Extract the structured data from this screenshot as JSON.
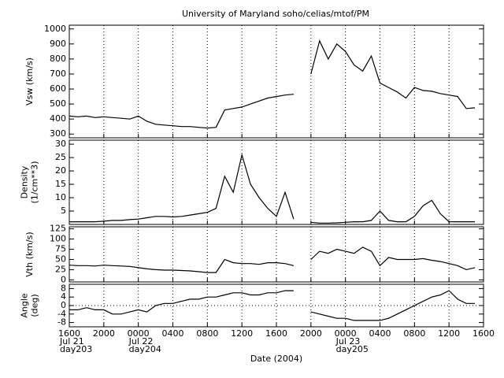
{
  "chart_data": [
    {
      "type": "line",
      "title": "University of Maryland  soho/celias/mtof/PM",
      "ylabel": [
        "Vsw (km/s)"
      ],
      "color": "#000000",
      "x": [
        "2004-07-21T16:00",
        "2004-07-21T17:00",
        "2004-07-21T18:00",
        "2004-07-21T19:00",
        "2004-07-21T20:00",
        "2004-07-21T21:00",
        "2004-07-21T22:00",
        "2004-07-21T23:00",
        "2004-07-22T00:00",
        "2004-07-22T01:00",
        "2004-07-22T02:00",
        "2004-07-22T03:00",
        "2004-07-22T04:00",
        "2004-07-22T05:00",
        "2004-07-22T06:00",
        "2004-07-22T07:00",
        "2004-07-22T08:00",
        "2004-07-22T09:00",
        "2004-07-22T10:00",
        "2004-07-22T11:00",
        "2004-07-22T12:00",
        "2004-07-22T13:00",
        "2004-07-22T14:00",
        "2004-07-22T15:00",
        "2004-07-22T16:00",
        "2004-07-22T17:00",
        "2004-07-22T18:00",
        "2004-07-22T19:00",
        "2004-07-22T20:00",
        "2004-07-22T21:00",
        "2004-07-22T22:00",
        "2004-07-22T23:00",
        "2004-07-23T00:00",
        "2004-07-23T01:00",
        "2004-07-23T02:00",
        "2004-07-23T03:00",
        "2004-07-23T04:00",
        "2004-07-23T05:00",
        "2004-07-23T06:00",
        "2004-07-23T07:00",
        "2004-07-23T08:00",
        "2004-07-23T09:00",
        "2004-07-23T10:00",
        "2004-07-23T11:00",
        "2004-07-23T12:00",
        "2004-07-23T13:00",
        "2004-07-23T14:00",
        "2004-07-23T15:00"
      ],
      "values": [
        420,
        415,
        420,
        410,
        415,
        410,
        405,
        400,
        420,
        385,
        365,
        360,
        355,
        350,
        350,
        345,
        340,
        345,
        460,
        470,
        480,
        500,
        520,
        540,
        550,
        560,
        565,
        null,
        700,
        920,
        800,
        900,
        850,
        760,
        720,
        820,
        640,
        610,
        580,
        540,
        610,
        590,
        585,
        570,
        560,
        550,
        470,
        475
      ],
      "ylim": [
        275,
        1025
      ],
      "yticks": [
        300,
        400,
        500,
        600,
        700,
        800,
        900,
        1000
      ]
    },
    {
      "type": "line",
      "ylabel": [
        "Density",
        "(1/cm**3)"
      ],
      "color": "#000000",
      "x": [
        "2004-07-21T16:00",
        "2004-07-21T17:00",
        "2004-07-21T18:00",
        "2004-07-21T19:00",
        "2004-07-21T20:00",
        "2004-07-21T21:00",
        "2004-07-21T22:00",
        "2004-07-21T23:00",
        "2004-07-22T00:00",
        "2004-07-22T01:00",
        "2004-07-22T02:00",
        "2004-07-22T03:00",
        "2004-07-22T04:00",
        "2004-07-22T05:00",
        "2004-07-22T06:00",
        "2004-07-22T07:00",
        "2004-07-22T08:00",
        "2004-07-22T09:00",
        "2004-07-22T10:00",
        "2004-07-22T11:00",
        "2004-07-22T12:00",
        "2004-07-22T13:00",
        "2004-07-22T14:00",
        "2004-07-22T15:00",
        "2004-07-22T16:00",
        "2004-07-22T17:00",
        "2004-07-22T18:00",
        "2004-07-22T19:00",
        "2004-07-22T20:00",
        "2004-07-22T21:00",
        "2004-07-22T22:00",
        "2004-07-22T23:00",
        "2004-07-23T00:00",
        "2004-07-23T01:00",
        "2004-07-23T02:00",
        "2004-07-23T03:00",
        "2004-07-23T04:00",
        "2004-07-23T05:00",
        "2004-07-23T06:00",
        "2004-07-23T07:00",
        "2004-07-23T08:00",
        "2004-07-23T09:00",
        "2004-07-23T10:00",
        "2004-07-23T11:00",
        "2004-07-23T12:00",
        "2004-07-23T13:00",
        "2004-07-23T14:00",
        "2004-07-23T15:00"
      ],
      "values": [
        1,
        1,
        1,
        1,
        1.2,
        1.5,
        1.5,
        1.8,
        2,
        2.5,
        3,
        3,
        2.8,
        3,
        3.5,
        4,
        4.5,
        6,
        18,
        12,
        26,
        15,
        10,
        6,
        3,
        12,
        2,
        null,
        0.8,
        0.5,
        0.5,
        0.6,
        0.8,
        1,
        1,
        1.5,
        5,
        1.5,
        1,
        1,
        3,
        7,
        9,
        4,
        1,
        1,
        1,
        1
      ],
      "ylim": [
        0,
        31.5
      ],
      "yticks": [
        5,
        10,
        15,
        20,
        25,
        30
      ]
    },
    {
      "type": "line",
      "ylabel": [
        "Vth (km/s)"
      ],
      "color": "#000000",
      "x": [
        "2004-07-21T16:00",
        "2004-07-21T17:00",
        "2004-07-21T18:00",
        "2004-07-21T19:00",
        "2004-07-21T20:00",
        "2004-07-21T21:00",
        "2004-07-21T22:00",
        "2004-07-21T23:00",
        "2004-07-22T00:00",
        "2004-07-22T01:00",
        "2004-07-22T02:00",
        "2004-07-22T03:00",
        "2004-07-22T04:00",
        "2004-07-22T05:00",
        "2004-07-22T06:00",
        "2004-07-22T07:00",
        "2004-07-22T08:00",
        "2004-07-22T09:00",
        "2004-07-22T10:00",
        "2004-07-22T11:00",
        "2004-07-22T12:00",
        "2004-07-22T13:00",
        "2004-07-22T14:00",
        "2004-07-22T15:00",
        "2004-07-22T16:00",
        "2004-07-22T17:00",
        "2004-07-22T18:00",
        "2004-07-22T19:00",
        "2004-07-22T20:00",
        "2004-07-22T21:00",
        "2004-07-22T22:00",
        "2004-07-22T23:00",
        "2004-07-23T00:00",
        "2004-07-23T01:00",
        "2004-07-23T02:00",
        "2004-07-23T03:00",
        "2004-07-23T04:00",
        "2004-07-23T05:00",
        "2004-07-23T06:00",
        "2004-07-23T07:00",
        "2004-07-23T08:00",
        "2004-07-23T09:00",
        "2004-07-23T10:00",
        "2004-07-23T11:00",
        "2004-07-23T12:00",
        "2004-07-23T13:00",
        "2004-07-23T14:00",
        "2004-07-23T15:00"
      ],
      "values": [
        36,
        35,
        35,
        34,
        36,
        35,
        34,
        33,
        30,
        27,
        25,
        24,
        24,
        23,
        22,
        20,
        18,
        18,
        50,
        42,
        40,
        40,
        38,
        42,
        42,
        40,
        35,
        null,
        50,
        70,
        65,
        75,
        70,
        65,
        80,
        70,
        35,
        55,
        50,
        50,
        50,
        52,
        48,
        45,
        40,
        35,
        25,
        30
      ],
      "ylim": [
        -5,
        130
      ],
      "yticks": [
        0,
        25,
        50,
        75,
        100,
        125
      ]
    },
    {
      "type": "line",
      "ylabel": [
        "Angle",
        "(deg)"
      ],
      "xlabel": "Date (2004)",
      "color": "#000000",
      "zero_line": true,
      "x": [
        "2004-07-21T16:00",
        "2004-07-21T17:00",
        "2004-07-21T18:00",
        "2004-07-21T19:00",
        "2004-07-21T20:00",
        "2004-07-21T21:00",
        "2004-07-21T22:00",
        "2004-07-21T23:00",
        "2004-07-22T00:00",
        "2004-07-22T01:00",
        "2004-07-22T02:00",
        "2004-07-22T03:00",
        "2004-07-22T04:00",
        "2004-07-22T05:00",
        "2004-07-22T06:00",
        "2004-07-22T07:00",
        "2004-07-22T08:00",
        "2004-07-22T09:00",
        "2004-07-22T10:00",
        "2004-07-22T11:00",
        "2004-07-22T12:00",
        "2004-07-22T13:00",
        "2004-07-22T14:00",
        "2004-07-22T15:00",
        "2004-07-22T16:00",
        "2004-07-22T17:00",
        "2004-07-22T18:00",
        "2004-07-22T19:00",
        "2004-07-22T20:00",
        "2004-07-22T21:00",
        "2004-07-22T22:00",
        "2004-07-22T23:00",
        "2004-07-23T00:00",
        "2004-07-23T01:00",
        "2004-07-23T02:00",
        "2004-07-23T03:00",
        "2004-07-23T04:00",
        "2004-07-23T05:00",
        "2004-07-23T06:00",
        "2004-07-23T07:00",
        "2004-07-23T08:00",
        "2004-07-23T09:00",
        "2004-07-23T10:00",
        "2004-07-23T11:00",
        "2004-07-23T12:00",
        "2004-07-23T13:00",
        "2004-07-23T14:00",
        "2004-07-23T15:00"
      ],
      "values": [
        -2,
        -2,
        -1,
        -2,
        -2,
        -4,
        -4,
        -3,
        -2,
        -3,
        0,
        1,
        1,
        2,
        3,
        3,
        4,
        4,
        5,
        6,
        6,
        5,
        5,
        6,
        6,
        7,
        7,
        null,
        -3,
        -4,
        -5,
        -6,
        -6,
        -7,
        -7,
        -7,
        -7,
        -6,
        -4,
        -2,
        0,
        2,
        4,
        5,
        7,
        3,
        1,
        1
      ],
      "ylim": [
        -10,
        10
      ],
      "yticks": [
        -8,
        -4,
        0,
        4,
        8
      ],
      "xlim": [
        "2004-07-21T16:00",
        "2004-07-23T16:00"
      ],
      "xticks": [
        {
          "value": "2004-07-21T16:00",
          "label": "1600"
        },
        {
          "value": "2004-07-21T20:00",
          "label": "2000"
        },
        {
          "value": "2004-07-22T00:00",
          "label": "0000"
        },
        {
          "value": "2004-07-22T04:00",
          "label": "0400"
        },
        {
          "value": "2004-07-22T08:00",
          "label": "0800"
        },
        {
          "value": "2004-07-22T12:00",
          "label": "1200"
        },
        {
          "value": "2004-07-22T16:00",
          "label": "1600"
        },
        {
          "value": "2004-07-22T20:00",
          "label": "2000"
        },
        {
          "value": "2004-07-23T00:00",
          "label": "0000"
        },
        {
          "value": "2004-07-23T04:00",
          "label": "0400"
        },
        {
          "value": "2004-07-23T08:00",
          "label": "0800"
        },
        {
          "value": "2004-07-23T12:00",
          "label": "1200"
        },
        {
          "value": "2004-07-23T16:00",
          "label": "1600"
        }
      ],
      "xtick_sublabels": [
        {
          "value": "2004-07-21T16:00",
          "lines": [
            "Jul 21",
            "day203"
          ]
        },
        {
          "value": "2004-07-22T00:00",
          "lines": [
            "Jul 22",
            "day204"
          ]
        },
        {
          "value": "2004-07-23T00:00",
          "lines": [
            "Jul 23",
            "day205"
          ]
        }
      ]
    }
  ]
}
